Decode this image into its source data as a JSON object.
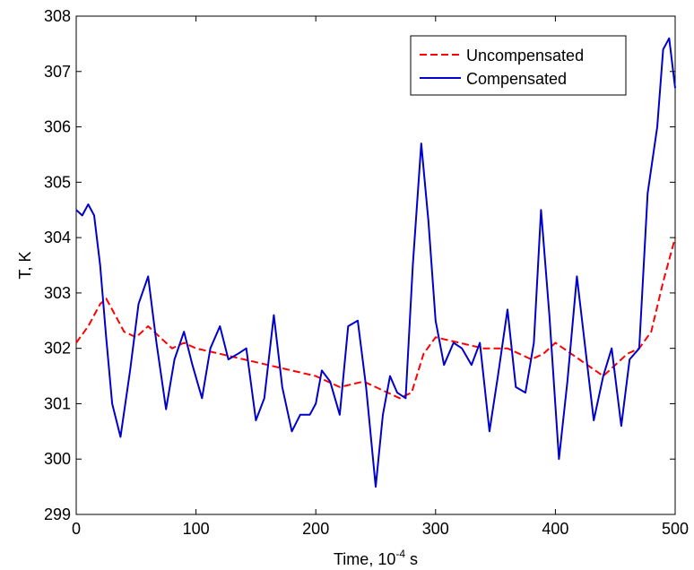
{
  "chart_data": {
    "type": "line",
    "title": "",
    "xlabel": "Time, 10",
    "xlabel_exponent": "-4",
    "xlabel_unit": "s",
    "ylabel": "T, K",
    "xlim": [
      0,
      500
    ],
    "ylim": [
      299,
      308
    ],
    "xticks": [
      "0",
      "100",
      "200",
      "300",
      "400",
      "500"
    ],
    "yticks": [
      "299",
      "300",
      "301",
      "302",
      "303",
      "304",
      "305",
      "306",
      "307",
      "308"
    ],
    "grid": false,
    "legend_position": "top-right",
    "series": [
      {
        "name": "Uncompensated",
        "color": "#ff0000",
        "style": "dashed",
        "x": [
          0,
          10,
          20,
          25,
          30,
          40,
          50,
          60,
          70,
          80,
          90,
          100,
          120,
          140,
          160,
          180,
          200,
          220,
          240,
          250,
          260,
          270,
          280,
          290,
          300,
          320,
          340,
          360,
          380,
          390,
          400,
          420,
          440,
          460,
          470,
          480,
          490,
          500
        ],
        "y": [
          302.1,
          302.4,
          302.8,
          302.9,
          302.7,
          302.3,
          302.2,
          302.4,
          302.2,
          302.0,
          302.1,
          302.0,
          301.9,
          301.8,
          301.7,
          301.6,
          301.5,
          301.3,
          301.4,
          301.3,
          301.2,
          301.1,
          301.2,
          301.9,
          302.2,
          302.1,
          302.0,
          302.0,
          301.8,
          301.9,
          302.1,
          301.8,
          301.5,
          301.9,
          302.0,
          302.3,
          303.2,
          304.0
        ]
      },
      {
        "name": "Compensated",
        "color": "#0000cc",
        "style": "solid",
        "x": [
          0,
          5,
          10,
          15,
          20,
          25,
          30,
          37,
          45,
          52,
          60,
          67,
          75,
          82,
          90,
          97,
          105,
          112,
          120,
          127,
          135,
          142,
          150,
          157,
          165,
          172,
          180,
          187,
          195,
          200,
          205,
          212,
          220,
          227,
          235,
          242,
          250,
          256,
          262,
          268,
          275,
          281,
          288,
          294,
          300,
          307,
          315,
          322,
          330,
          337,
          345,
          352,
          360,
          367,
          375,
          382,
          388,
          395,
          403,
          410,
          418,
          425,
          432,
          440,
          447,
          455,
          462,
          470,
          477,
          485,
          490,
          495,
          500
        ],
        "y": [
          304.5,
          304.4,
          304.6,
          304.4,
          303.5,
          302.2,
          301.0,
          300.4,
          301.6,
          302.8,
          303.3,
          302.1,
          300.9,
          301.8,
          302.3,
          301.7,
          301.1,
          302.0,
          302.4,
          301.8,
          301.9,
          302.0,
          300.7,
          301.1,
          302.6,
          301.3,
          300.5,
          300.8,
          300.8,
          301.0,
          301.6,
          301.4,
          300.8,
          302.4,
          302.5,
          301.3,
          299.5,
          300.8,
          301.5,
          301.2,
          301.1,
          303.5,
          305.7,
          304.3,
          302.5,
          301.7,
          302.1,
          302.0,
          301.7,
          302.1,
          300.5,
          301.5,
          302.7,
          301.3,
          301.2,
          302.1,
          304.5,
          302.6,
          300.0,
          301.4,
          303.3,
          302.0,
          300.7,
          301.5,
          302.0,
          300.6,
          301.8,
          302.0,
          304.8,
          306.0,
          307.4,
          307.6,
          306.7
        ]
      }
    ]
  }
}
